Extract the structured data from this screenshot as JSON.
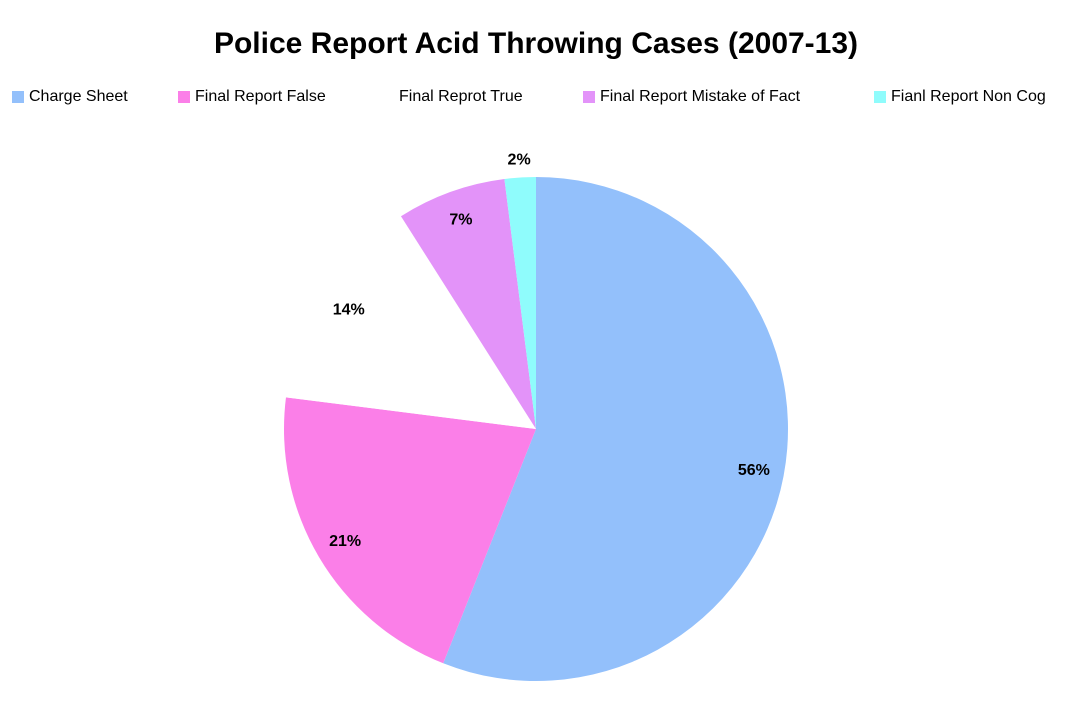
{
  "chart_data": {
    "type": "pie",
    "title": "Police Report Acid Throwing Cases (2007-13)",
    "categories": [
      "Charge Sheet",
      "Final Report False",
      "Final Reprot True",
      "Final Report Mistake of Fact",
      "Fianl Report Non Cog"
    ],
    "values": [
      56,
      21,
      14,
      7,
      2
    ],
    "value_labels": [
      "56%",
      "21%",
      "14%",
      "7%",
      "2%"
    ],
    "colors": [
      "#93c0fb",
      "#fb7fe8",
      "#ffffff",
      "#e393f9",
      "#8ffcfc"
    ],
    "legend": "top"
  }
}
